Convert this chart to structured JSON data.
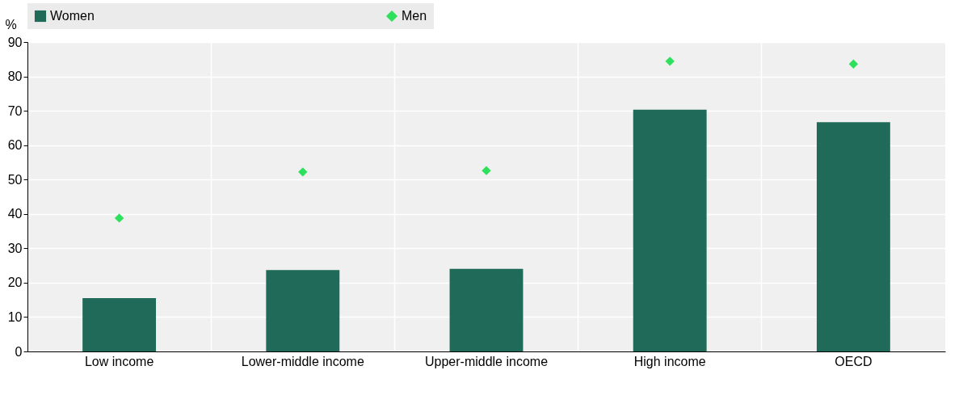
{
  "chart_data": {
    "type": "bar",
    "ylabel": "%",
    "categories": [
      "Low income",
      "Lower-middle income",
      "Upper-middle income",
      "High income",
      "OECD"
    ],
    "series": [
      {
        "name": "Women",
        "color": "#206a5a",
        "values": [
          15.5,
          23.7,
          24.0,
          70.3,
          66.7
        ]
      },
      {
        "name": "Men",
        "type": "scatter",
        "marker": "diamond",
        "color": "#2ee05c",
        "values": [
          38.8,
          52.2,
          52.6,
          84.4,
          83.6
        ]
      }
    ],
    "ylim": [
      0,
      90
    ],
    "yticks": [
      0,
      10,
      20,
      30,
      40,
      50,
      60,
      70,
      80,
      90
    ],
    "grid": true,
    "legend": "top"
  }
}
